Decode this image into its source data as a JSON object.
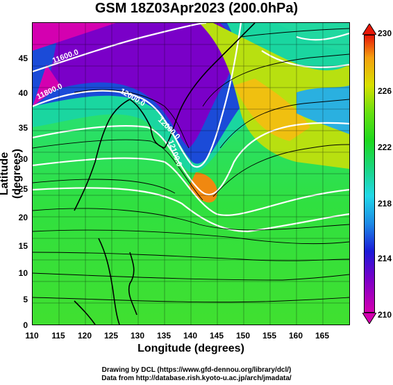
{
  "title": "GSM 18Z03Apr2023 (200.0hPa)",
  "x_axis_label": "Longitude (degrees)",
  "y_axis_label": "Latitude  (degrees)",
  "x_ticks": [
    "110",
    "115",
    "120",
    "125",
    "130",
    "135",
    "140",
    "145",
    "150",
    "155",
    "160",
    "165"
  ],
  "y_ticks": [
    "0",
    "5",
    "10",
    "15",
    "20",
    "25",
    "30",
    "35",
    "40",
    "45"
  ],
  "colorbar_ticks": [
    "230",
    "226",
    "222",
    "218",
    "214",
    "210"
  ],
  "contour_labels": [
    "11600.0",
    "11800.0",
    "12000.0",
    "12000.0",
    "12100.0"
  ],
  "credits": {
    "line1": "Drawing by DCL (https://www.gfd-dennou.org/library/dcl/)",
    "line2": "Data from http://database.rish.kyoto-u.ac.jp/arch/jmadata/"
  },
  "colors": {
    "min": "#d400b0",
    "max": "#e81808"
  }
}
